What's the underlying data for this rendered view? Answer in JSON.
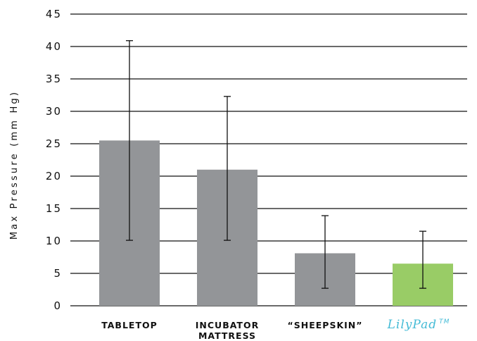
{
  "chart_data": {
    "type": "bar",
    "title": "",
    "xlabel": "",
    "ylabel": "Max Pressure (mm Hg)",
    "ylim": [
      0,
      45
    ],
    "yticks": [
      0,
      5,
      10,
      15,
      20,
      25,
      30,
      35,
      40,
      45
    ],
    "grid": true,
    "categories": [
      {
        "lines": [
          "TABLETOP"
        ],
        "style": "bold-caps"
      },
      {
        "lines": [
          "INCUBATOR",
          "MATTRESS"
        ],
        "style": "bold-caps"
      },
      {
        "lines": [
          "“SHEEPSKIN”"
        ],
        "style": "bold-caps"
      },
      {
        "lines": [
          "LilyPad"
        ],
        "style": "brand",
        "trademark": "TM"
      }
    ],
    "values": [
      25.5,
      21.0,
      8.1,
      6.5
    ],
    "error_low": [
      10.1,
      10.1,
      2.7,
      2.7
    ],
    "error_high": [
      40.9,
      32.3,
      13.9,
      11.5
    ],
    "colors": [
      "#939598",
      "#939598",
      "#939598",
      "#99cc66"
    ],
    "brand_text_color": "#44bbd6",
    "grid_color": "#111111"
  }
}
